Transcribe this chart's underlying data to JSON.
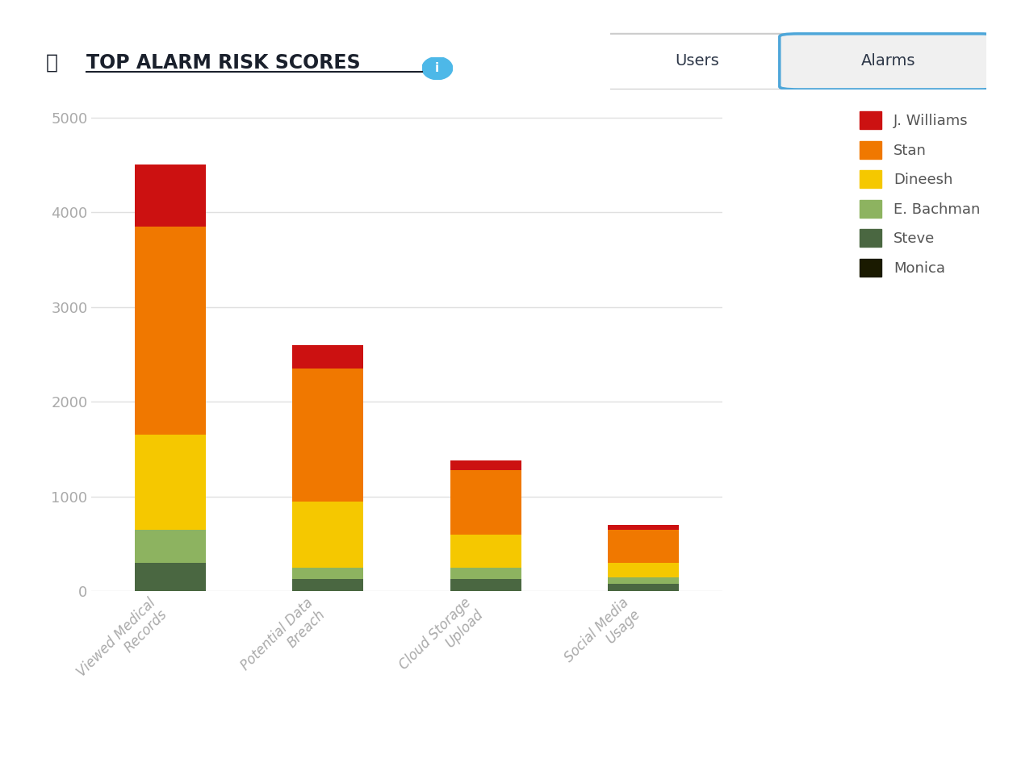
{
  "title": "TOP ALARM RISK SCORES",
  "categories": [
    "Viewed Medical\nRecords",
    "Potential Data\nBreach",
    "Cloud Storage\nUpload",
    "Social Media\nUsage"
  ],
  "series": [
    {
      "name": "Monica",
      "color": "#1a1a00",
      "values": [
        0,
        0,
        0,
        0
      ]
    },
    {
      "name": "Steve",
      "color": "#4a6741",
      "values": [
        300,
        130,
        130,
        80
      ]
    },
    {
      "name": "E. Bachman",
      "color": "#8db360",
      "values": [
        350,
        120,
        120,
        70
      ]
    },
    {
      "name": "Dineesh",
      "color": "#f5c800",
      "values": [
        1000,
        700,
        350,
        150
      ]
    },
    {
      "name": "Stan",
      "color": "#f07800",
      "values": [
        2200,
        1400,
        680,
        350
      ]
    },
    {
      "name": "J. Williams",
      "color": "#cc1111",
      "values": [
        650,
        250,
        100,
        50
      ]
    }
  ],
  "ylim": [
    0,
    5200
  ],
  "yticks": [
    0,
    1000,
    2000,
    3000,
    4000,
    5000
  ],
  "background_color": "#ffffff",
  "grid_color": "#e0e0e0",
  "legend_order": [
    "J. Williams",
    "Stan",
    "Dineesh",
    "E. Bachman",
    "Steve",
    "Monica"
  ],
  "users_button_color": "#ffffff",
  "alarms_button_color": "#f0f0f0",
  "button_border_color": "#4da6d9",
  "tick_color": "#aaaaaa",
  "title_color": "#1a202c",
  "info_circle_color": "#4db8e8",
  "legend_label_color": "#555555"
}
